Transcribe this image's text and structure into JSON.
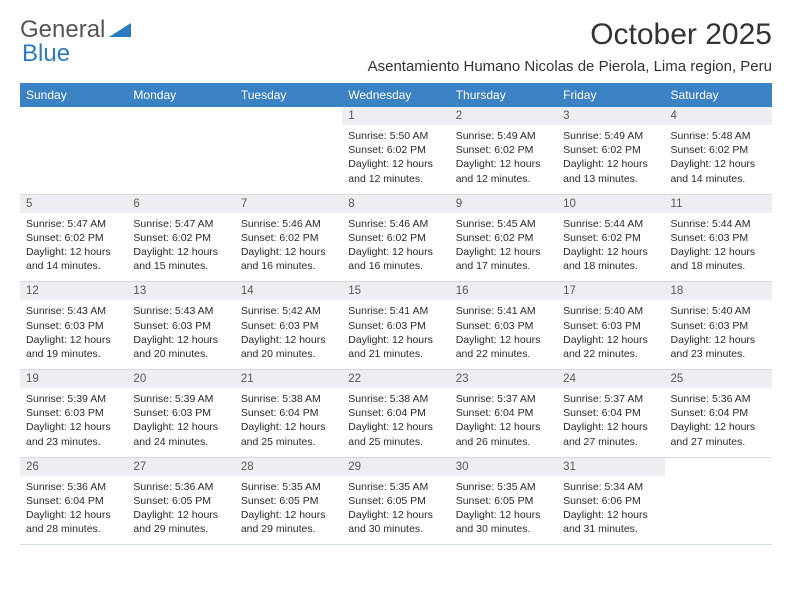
{
  "logo": {
    "line1": "General",
    "line2": "Blue"
  },
  "title": "October 2025",
  "subtitle": "Asentamiento Humano Nicolas de Pierola, Lima region, Peru",
  "colors": {
    "header_bg": "#3b82c4",
    "header_text": "#ffffff",
    "daynum_bg": "#eceef1",
    "border": "#d5dbe2",
    "text": "#2a2a2a",
    "logo_blue": "#2a7bbf"
  },
  "weekdays": [
    "Sunday",
    "Monday",
    "Tuesday",
    "Wednesday",
    "Thursday",
    "Friday",
    "Saturday"
  ],
  "weeks": [
    [
      null,
      null,
      null,
      {
        "n": "1",
        "sr": "5:50 AM",
        "ss": "6:02 PM",
        "dl": "12 hours and 12 minutes."
      },
      {
        "n": "2",
        "sr": "5:49 AM",
        "ss": "6:02 PM",
        "dl": "12 hours and 12 minutes."
      },
      {
        "n": "3",
        "sr": "5:49 AM",
        "ss": "6:02 PM",
        "dl": "12 hours and 13 minutes."
      },
      {
        "n": "4",
        "sr": "5:48 AM",
        "ss": "6:02 PM",
        "dl": "12 hours and 14 minutes."
      }
    ],
    [
      {
        "n": "5",
        "sr": "5:47 AM",
        "ss": "6:02 PM",
        "dl": "12 hours and 14 minutes."
      },
      {
        "n": "6",
        "sr": "5:47 AM",
        "ss": "6:02 PM",
        "dl": "12 hours and 15 minutes."
      },
      {
        "n": "7",
        "sr": "5:46 AM",
        "ss": "6:02 PM",
        "dl": "12 hours and 16 minutes."
      },
      {
        "n": "8",
        "sr": "5:46 AM",
        "ss": "6:02 PM",
        "dl": "12 hours and 16 minutes."
      },
      {
        "n": "9",
        "sr": "5:45 AM",
        "ss": "6:02 PM",
        "dl": "12 hours and 17 minutes."
      },
      {
        "n": "10",
        "sr": "5:44 AM",
        "ss": "6:02 PM",
        "dl": "12 hours and 18 minutes."
      },
      {
        "n": "11",
        "sr": "5:44 AM",
        "ss": "6:03 PM",
        "dl": "12 hours and 18 minutes."
      }
    ],
    [
      {
        "n": "12",
        "sr": "5:43 AM",
        "ss": "6:03 PM",
        "dl": "12 hours and 19 minutes."
      },
      {
        "n": "13",
        "sr": "5:43 AM",
        "ss": "6:03 PM",
        "dl": "12 hours and 20 minutes."
      },
      {
        "n": "14",
        "sr": "5:42 AM",
        "ss": "6:03 PM",
        "dl": "12 hours and 20 minutes."
      },
      {
        "n": "15",
        "sr": "5:41 AM",
        "ss": "6:03 PM",
        "dl": "12 hours and 21 minutes."
      },
      {
        "n": "16",
        "sr": "5:41 AM",
        "ss": "6:03 PM",
        "dl": "12 hours and 22 minutes."
      },
      {
        "n": "17",
        "sr": "5:40 AM",
        "ss": "6:03 PM",
        "dl": "12 hours and 22 minutes."
      },
      {
        "n": "18",
        "sr": "5:40 AM",
        "ss": "6:03 PM",
        "dl": "12 hours and 23 minutes."
      }
    ],
    [
      {
        "n": "19",
        "sr": "5:39 AM",
        "ss": "6:03 PM",
        "dl": "12 hours and 23 minutes."
      },
      {
        "n": "20",
        "sr": "5:39 AM",
        "ss": "6:03 PM",
        "dl": "12 hours and 24 minutes."
      },
      {
        "n": "21",
        "sr": "5:38 AM",
        "ss": "6:04 PM",
        "dl": "12 hours and 25 minutes."
      },
      {
        "n": "22",
        "sr": "5:38 AM",
        "ss": "6:04 PM",
        "dl": "12 hours and 25 minutes."
      },
      {
        "n": "23",
        "sr": "5:37 AM",
        "ss": "6:04 PM",
        "dl": "12 hours and 26 minutes."
      },
      {
        "n": "24",
        "sr": "5:37 AM",
        "ss": "6:04 PM",
        "dl": "12 hours and 27 minutes."
      },
      {
        "n": "25",
        "sr": "5:36 AM",
        "ss": "6:04 PM",
        "dl": "12 hours and 27 minutes."
      }
    ],
    [
      {
        "n": "26",
        "sr": "5:36 AM",
        "ss": "6:04 PM",
        "dl": "12 hours and 28 minutes."
      },
      {
        "n": "27",
        "sr": "5:36 AM",
        "ss": "6:05 PM",
        "dl": "12 hours and 29 minutes."
      },
      {
        "n": "28",
        "sr": "5:35 AM",
        "ss": "6:05 PM",
        "dl": "12 hours and 29 minutes."
      },
      {
        "n": "29",
        "sr": "5:35 AM",
        "ss": "6:05 PM",
        "dl": "12 hours and 30 minutes."
      },
      {
        "n": "30",
        "sr": "5:35 AM",
        "ss": "6:05 PM",
        "dl": "12 hours and 30 minutes."
      },
      {
        "n": "31",
        "sr": "5:34 AM",
        "ss": "6:06 PM",
        "dl": "12 hours and 31 minutes."
      },
      null
    ]
  ],
  "labels": {
    "sunrise": "Sunrise:",
    "sunset": "Sunset:",
    "daylight": "Daylight:"
  }
}
